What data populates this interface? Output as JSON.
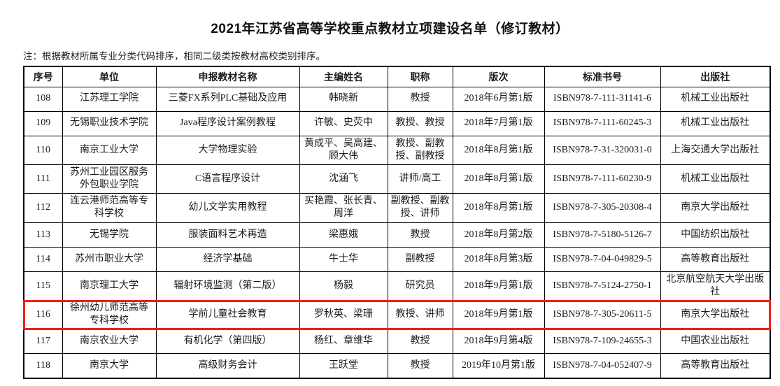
{
  "page": {
    "title": "2021年江苏省高等学校重点教材立项建设名单（修订教材）",
    "note": "注：根据教材所属专业分类代码排序，相同二级类按教材高校类别排序。"
  },
  "table": {
    "headers": [
      "序号",
      "单位",
      "申报教材名称",
      "主编姓名",
      "职称",
      "版次",
      "标准书号",
      "出版社"
    ],
    "highlight_row_index": 8,
    "highlight_color": "#ee2016",
    "rows": [
      [
        "108",
        "江苏理工学院",
        "三菱FX系列PLC基础及应用",
        "韩晓新",
        "教授",
        "2018年6月第1版",
        "ISBN978-7-111-31141-6",
        "机械工业出版社"
      ],
      [
        "109",
        "无锡职业技术学院",
        "Java程序设计案例教程",
        "许敏、史荧中",
        "教授、教授",
        "2018年7月第1版",
        "ISBN978-7-111-60245-3",
        "机械工业出版社"
      ],
      [
        "110",
        "南京工业大学",
        "大学物理实验",
        "黄成平、吴高建、顾大伟",
        "教授、副教授、副教授",
        "2018年8月第1版",
        "ISBN978-7-31-320031-0",
        "上海交通大学出版社"
      ],
      [
        "111",
        "苏州工业园区服务外包职业学院",
        "C语言程序设计",
        "沈涵飞",
        "讲师/高工",
        "2018年8月第1版",
        "ISBN978-7-111-60230-9",
        "机械工业出版社"
      ],
      [
        "112",
        "连云港师范高等专科学校",
        "幼儿文学实用教程",
        "买艳霞、张长青、周洋",
        "副教授、副教授、讲师",
        "2018年8月第1版",
        "ISBN978-7-305-20308-4",
        "南京大学出版社"
      ],
      [
        "113",
        "无锡学院",
        "服装面料艺术再造",
        "梁惠娥",
        "教授",
        "2018年8月第2版",
        "ISBN978-7-5180-5126-7",
        "中国纺织出版社"
      ],
      [
        "114",
        "苏州市职业大学",
        "经济学基础",
        "牛士华",
        "副教授",
        "2018年8月第3版",
        "ISBN978-7-04-049829-5",
        "高等教育出版社"
      ],
      [
        "115",
        "南京理工大学",
        "辐射环境监测（第二版）",
        "杨毅",
        "研究员",
        "2018年9月第1版",
        "ISBN978-7-5124-2750-1",
        "北京航空航天大学出版社"
      ],
      [
        "116",
        "徐州幼儿师范高等专科学校",
        "学前儿童社会教育",
        "罗秋英、梁珊",
        "教授、讲师",
        "2018年9月第1版",
        "ISBN978-7-305-20611-5",
        "南京大学出版社"
      ],
      [
        "117",
        "南京农业大学",
        "有机化学（第四版）",
        "杨红、章维华",
        "教授",
        "2018年9月第4版",
        "ISBN978-7-109-24655-3",
        "中国农业出版社"
      ],
      [
        "118",
        "南京大学",
        "高级财务会计",
        "王跃堂",
        "教授",
        "2019年10月第1版",
        "ISBN978-7-04-052407-9",
        "高等教育出版社"
      ]
    ]
  }
}
